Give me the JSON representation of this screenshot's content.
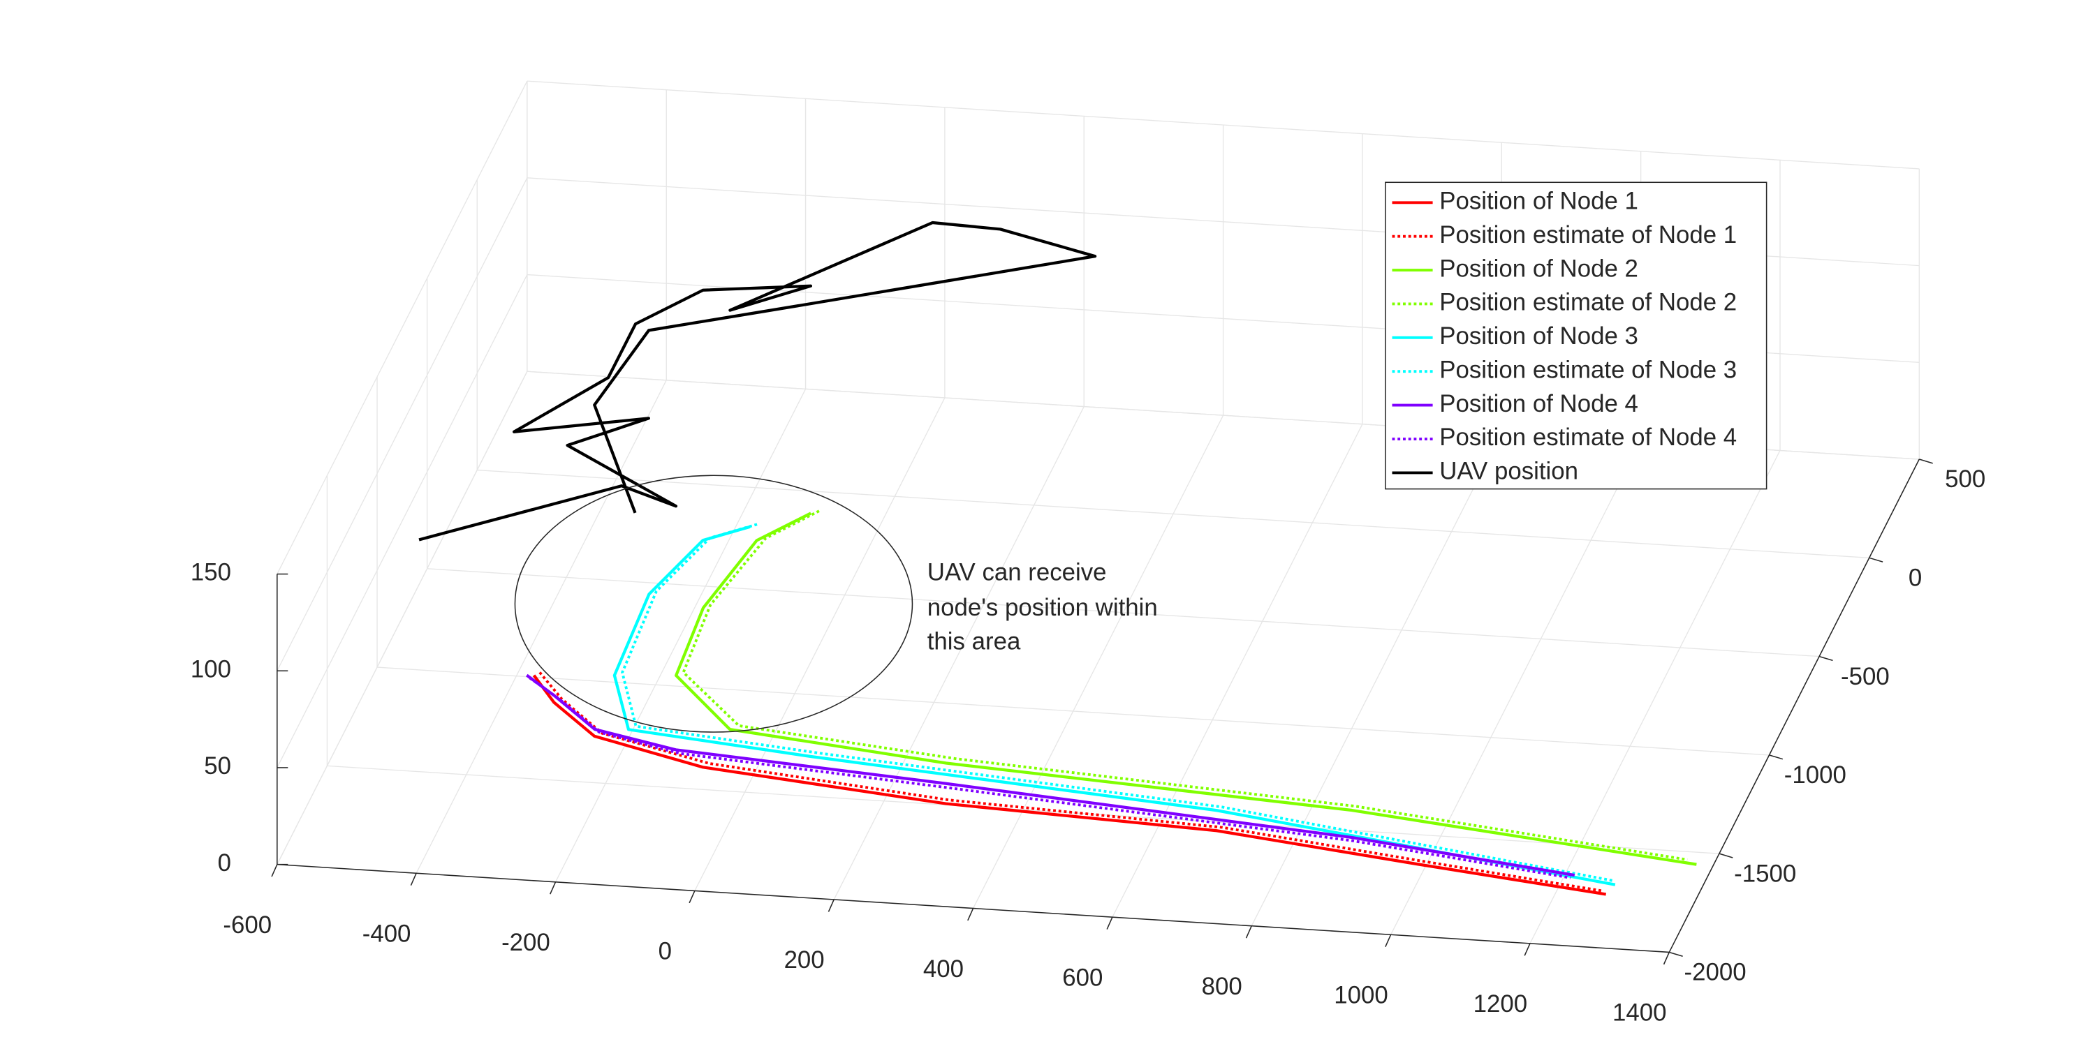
{
  "chart_data": {
    "type": "line3d",
    "xlim": [
      -600,
      1400
    ],
    "ylim": [
      -2000,
      500
    ],
    "zlim": [
      0,
      150
    ],
    "xticks": [
      -600,
      -400,
      -200,
      0,
      200,
      400,
      600,
      800,
      1000,
      1200,
      1400
    ],
    "yticks": [
      -2000,
      -1500,
      -1000,
      -500,
      0,
      500
    ],
    "zticks": [
      0,
      50,
      100,
      150
    ],
    "grid": true,
    "legend": "northeast",
    "annotation": [
      "UAV can receive",
      "node's position within",
      "this area"
    ],
    "series": [
      {
        "name": "Position of Node 1",
        "color": "#ff0000",
        "style": "solid",
        "x": [
          -376,
          -329,
          -249,
          -76,
          288,
          684,
          990,
          1271
        ],
        "y": [
          -991,
          -1118,
          -1271,
          -1390,
          -1494,
          -1543,
          -1646,
          -1735
        ],
        "z": [
          0,
          0,
          0,
          0,
          0,
          0,
          0,
          0
        ]
      },
      {
        "name": "Position estimate of Node 1",
        "color": "#ff0000",
        "style": "dotted",
        "x": [
          -370,
          -320,
          -240,
          -70,
          290,
          690,
          995,
          1265
        ],
        "y": [
          -975,
          -1100,
          -1255,
          -1370,
          -1475,
          -1525,
          -1630,
          -1720
        ],
        "z": [
          0,
          0,
          0,
          0,
          0,
          0,
          0,
          0
        ]
      },
      {
        "name": "Position of Node 2",
        "color": "#80ff00",
        "style": "solid",
        "x": [
          -105,
          -161,
          -188,
          -178,
          -65,
          260,
          858,
          1376
        ],
        "y": [
          -109,
          -259,
          -607,
          -948,
          -1196,
          -1295,
          -1401,
          -1560
        ],
        "z": [
          0,
          0,
          0,
          0,
          0,
          0,
          0,
          0
        ]
      },
      {
        "name": "Position estimate of Node 2",
        "color": "#80ff00",
        "style": "dotted",
        "x": [
          -95,
          -150,
          -180,
          -170,
          -55,
          270,
          860,
          1360
        ],
        "y": [
          -95,
          -245,
          -590,
          -930,
          -1175,
          -1270,
          -1380,
          -1540
        ],
        "z": [
          0,
          0,
          0,
          0,
          0,
          0,
          0,
          0
        ]
      },
      {
        "name": "Position of Node 3",
        "color": "#00ffff",
        "style": "solid",
        "x": [
          -180,
          -236,
          -273,
          -264,
          -206,
          67,
          670,
          1277
        ],
        "y": [
          -194,
          -275,
          -557,
          -966,
          -1228,
          -1304,
          -1443,
          -1685
        ],
        "z": [
          0,
          0,
          0,
          0,
          0,
          0,
          0,
          0
        ]
      },
      {
        "name": "Position estimate of Node 3",
        "color": "#00ffff",
        "style": "dotted",
        "x": [
          -172,
          -228,
          -265,
          -255,
          -198,
          75,
          675,
          1270
        ],
        "y": [
          -180,
          -262,
          -540,
          -950,
          -1210,
          -1285,
          -1425,
          -1665
        ],
        "z": [
          0,
          0,
          0,
          0,
          0,
          0,
          0,
          0
        ]
      },
      {
        "name": "Position of Node 4",
        "color": "#7f00ff",
        "style": "solid",
        "x": [
          -386,
          -333,
          -253,
          -126,
          274,
          877,
          1214
        ],
        "y": [
          -993,
          -1085,
          -1238,
          -1313,
          -1395,
          -1534,
          -1651
        ],
        "z": [
          0,
          0,
          0,
          0,
          0,
          0,
          0
        ]
      },
      {
        "name": "Position estimate of Node 4",
        "color": "#7f00ff",
        "style": "dotted",
        "x": [
          -380,
          -325,
          -245,
          -118,
          280,
          880,
          1210
        ],
        "y": [
          -1005,
          -1098,
          -1250,
          -1330,
          -1415,
          -1550,
          -1665
        ],
        "z": [
          0,
          0,
          0,
          0,
          0,
          0,
          0
        ]
      },
      {
        "name": "UAV position",
        "color": "#000000",
        "style": "solid",
        "x": [
          -495,
          -251,
          -161,
          -355,
          -261,
          -439,
          -346,
          -346,
          -276,
          -129,
          -224,
          -4,
          95,
          246,
          -116,
          -323,
          -346,
          -213
        ],
        "y": [
          -1312,
          -984,
          -1067,
          -802,
          -644,
          -752,
          -457,
          -184,
          3,
          57,
          -88,
          406,
          394,
          291,
          -30,
          -212,
          -595,
          -1113
        ],
        "z": [
          100,
          100,
          100,
          100,
          100,
          100,
          100,
          100,
          100,
          100,
          100,
          100,
          100,
          100,
          100,
          100,
          100,
          100
        ]
      }
    ]
  }
}
